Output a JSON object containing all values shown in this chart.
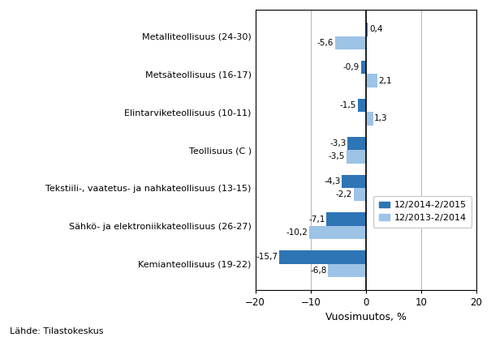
{
  "categories": [
    "Kemianteollisuus (19-22)",
    "Sähkö- ja elektroniikkateollisuus (26-27)",
    "Tekstiili-, vaatetus- ja nahkateollisuus (13-15)",
    "Teollisuus (C )",
    "Elintarviketeollisuus (10-11)",
    "Metsäteollisuus (16-17)",
    "Metalliteollisuus (24-30)"
  ],
  "series1_values": [
    -15.7,
    -7.1,
    -4.3,
    -3.3,
    -1.5,
    -0.9,
    0.4
  ],
  "series2_values": [
    -6.8,
    -10.2,
    -2.2,
    -3.5,
    1.3,
    2.1,
    -5.6
  ],
  "series1_labels": [
    "-15,7",
    "-7,1",
    "-4,3",
    "-3,3",
    "-1,5",
    "-0,9",
    "0,4"
  ],
  "series2_labels": [
    "-6,8",
    "-10,2",
    "-2,2",
    "-3,5",
    "1,3",
    "2,1",
    "-5,6"
  ],
  "series1_label": "12/2014-2/2015",
  "series2_label": "12/2013-2/2014",
  "series1_color": "#2E75B6",
  "series2_color": "#9DC3E6",
  "xlabel": "Vuosimuutos, %",
  "xlim": [
    -20,
    20
  ],
  "xticks": [
    -20,
    -10,
    0,
    10,
    20
  ],
  "source": "Lähde: Tilastokeskus",
  "bar_height": 0.35,
  "grid_color": "#AAAAAA",
  "frame_color": "#000000"
}
